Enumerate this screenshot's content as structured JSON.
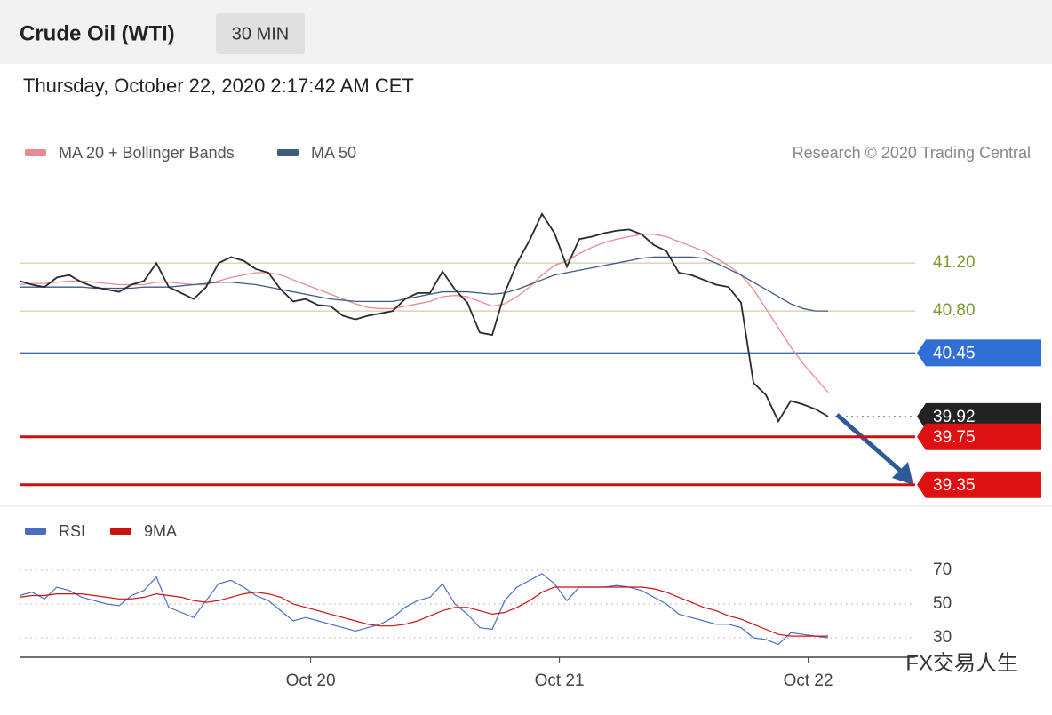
{
  "chart_data": {
    "type": "line",
    "title": "Crude Oil (WTI)",
    "timeframe": "30 MIN",
    "subtitle": "Thursday, October 22, 2020 2:17:42 AM CET",
    "credit": "Research © 2020 Trading Central",
    "watermark": "FX交易人生",
    "xlim": [
      0,
      72
    ],
    "xticks": [
      {
        "value": 23.4,
        "label": "Oct 20"
      },
      {
        "value": 43.4,
        "label": "Oct 21"
      },
      {
        "value": 63.4,
        "label": "Oct 22"
      }
    ],
    "ylim": [
      39.2,
      41.95
    ],
    "price": {
      "name": "Price",
      "color": "#2a2a2a",
      "values": [
        41.05,
        41.02,
        41.0,
        41.08,
        41.1,
        41.04,
        41.0,
        40.98,
        40.96,
        41.02,
        41.05,
        41.2,
        41.0,
        40.95,
        40.9,
        41.0,
        41.2,
        41.25,
        41.22,
        41.15,
        41.12,
        40.98,
        40.88,
        40.9,
        40.85,
        40.84,
        40.76,
        40.73,
        40.76,
        40.78,
        40.8,
        40.9,
        40.95,
        40.95,
        41.13,
        40.98,
        40.87,
        40.62,
        40.6,
        40.95,
        41.2,
        41.39,
        41.61,
        41.45,
        41.17,
        41.4,
        41.42,
        41.45,
        41.47,
        41.48,
        41.44,
        41.35,
        41.3,
        41.12,
        41.1,
        41.06,
        41.02,
        41.0,
        40.87,
        40.2,
        40.1,
        39.88,
        40.05,
        40.02,
        39.98,
        39.92
      ]
    },
    "series": [
      {
        "name": "MA 20 + Bollinger Bands",
        "color": "#e88a92",
        "values": [
          41.02,
          41.03,
          41.03,
          41.04,
          41.05,
          41.05,
          41.04,
          41.03,
          41.02,
          41.02,
          41.02,
          41.04,
          41.04,
          41.03,
          41.02,
          41.02,
          41.05,
          41.08,
          41.1,
          41.12,
          41.12,
          41.1,
          41.06,
          41.02,
          40.98,
          40.94,
          40.9,
          40.86,
          40.83,
          40.82,
          40.82,
          40.84,
          40.86,
          40.88,
          40.92,
          40.93,
          40.92,
          40.88,
          40.84,
          40.86,
          40.92,
          41.0,
          41.1,
          41.18,
          41.22,
          41.28,
          41.33,
          41.37,
          41.4,
          41.42,
          41.44,
          41.44,
          41.42,
          41.38,
          41.34,
          41.3,
          41.24,
          41.18,
          41.1,
          40.98,
          40.82,
          40.66,
          40.5,
          40.36,
          40.24,
          40.12
        ]
      },
      {
        "name": "MA 50",
        "color": "#3d5a80",
        "values": [
          41.0,
          41.0,
          41.0,
          41.0,
          41.0,
          41.0,
          40.99,
          40.99,
          40.99,
          40.99,
          41.0,
          41.0,
          41.0,
          41.01,
          41.02,
          41.03,
          41.04,
          41.04,
          41.03,
          41.02,
          41.0,
          40.98,
          40.96,
          40.94,
          40.92,
          40.9,
          40.89,
          40.88,
          40.88,
          40.88,
          40.88,
          40.9,
          40.92,
          40.94,
          40.96,
          40.96,
          40.96,
          40.95,
          40.94,
          40.95,
          40.98,
          41.02,
          41.06,
          41.1,
          41.12,
          41.14,
          41.16,
          41.18,
          41.2,
          41.22,
          41.24,
          41.25,
          41.25,
          41.25,
          41.25,
          41.24,
          41.2,
          41.15,
          41.1,
          41.04,
          40.98,
          40.92,
          40.86,
          40.82,
          40.8,
          40.8
        ]
      }
    ],
    "levels": [
      {
        "value": 41.2,
        "label": "41.20",
        "color": "#7a9a2a",
        "line": "#cbbf93",
        "width": 1,
        "kind": "text"
      },
      {
        "value": 40.8,
        "label": "40.80",
        "color": "#7a9a2a",
        "line": "#cbbf93",
        "width": 1,
        "kind": "text"
      },
      {
        "value": 40.45,
        "label": "40.45",
        "color": "#2f6fd6",
        "line": "#3b6cc0",
        "width": 1.5,
        "kind": "tag"
      },
      {
        "value": 39.92,
        "label": "39.92",
        "color": "#222222",
        "line": "#555555",
        "width": 1,
        "kind": "tag",
        "dotted": true
      },
      {
        "value": 39.75,
        "label": "39.75",
        "color": "#dd1111",
        "line": "#d01010",
        "width": 3,
        "kind": "tag"
      },
      {
        "value": 39.35,
        "label": "39.35",
        "color": "#dd1111",
        "line": "#d01010",
        "width": 3,
        "kind": "tag"
      }
    ],
    "rsi": {
      "ylim": [
        20,
        80
      ],
      "yticks": [
        70,
        50,
        30
      ],
      "series": [
        {
          "name": "RSI",
          "color": "#4a6fc0",
          "values": [
            55,
            57,
            53,
            60,
            58,
            54,
            52,
            50,
            49,
            55,
            58,
            66,
            48,
            45,
            42,
            52,
            62,
            64,
            60,
            55,
            52,
            46,
            40,
            42,
            40,
            38,
            36,
            34,
            36,
            38,
            42,
            48,
            52,
            54,
            62,
            50,
            44,
            36,
            35,
            52,
            60,
            64,
            68,
            62,
            52,
            60,
            60,
            60,
            61,
            60,
            58,
            54,
            50,
            44,
            42,
            40,
            38,
            38,
            36,
            30,
            29,
            26,
            33,
            32,
            31,
            30
          ]
        },
        {
          "name": "9MA",
          "color": "#cc1111",
          "values": [
            54,
            55,
            55,
            56,
            56,
            56,
            55,
            54,
            53,
            53,
            54,
            56,
            55,
            54,
            52,
            51,
            52,
            54,
            56,
            57,
            56,
            54,
            50,
            48,
            46,
            44,
            42,
            40,
            38,
            37,
            37,
            38,
            40,
            43,
            46,
            48,
            48,
            46,
            44,
            45,
            48,
            52,
            57,
            60,
            60,
            60,
            60,
            60,
            60,
            60,
            60,
            59,
            57,
            54,
            51,
            48,
            46,
            43,
            41,
            38,
            35,
            32,
            31,
            31,
            31,
            31
          ]
        }
      ]
    }
  }
}
